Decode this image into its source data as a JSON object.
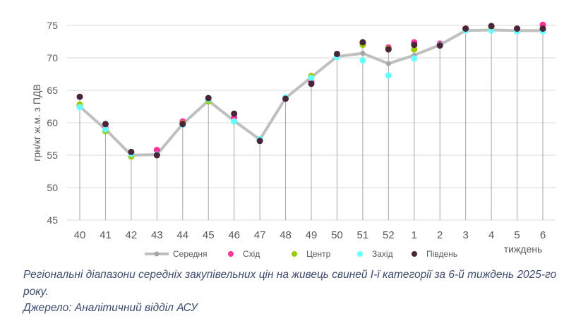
{
  "chart_data": {
    "type": "line",
    "ylabel": "грн/кг ж.м. з ПДВ",
    "xlabel": "тиждень",
    "ylim": [
      45,
      75
    ],
    "yticks": [
      45,
      50,
      55,
      60,
      65,
      70,
      75
    ],
    "grid": true,
    "legend_position": "bottom",
    "categories": [
      "40",
      "41",
      "42",
      "43",
      "44",
      "45",
      "46",
      "47",
      "48",
      "49",
      "50",
      "51",
      "52",
      "1",
      "2",
      "3",
      "4",
      "5",
      "6"
    ],
    "series": [
      {
        "name": "Середня",
        "color": "#bfbfbf",
        "marker": "#a6a6a6",
        "values": [
          62.5,
          59.0,
          55.0,
          55.1,
          59.8,
          63.4,
          60.3,
          57.4,
          63.8,
          67.0,
          70.2,
          70.7,
          69.1,
          70.4,
          72.0,
          74.2,
          74.3,
          74.2,
          74.2
        ]
      },
      {
        "name": "Схід",
        "color": "#ff3399",
        "values": [
          62.6,
          59.2,
          55.2,
          55.8,
          60.2,
          63.6,
          60.8,
          57.4,
          63.8,
          66.3,
          70.5,
          72.2,
          71.6,
          72.4,
          72.2,
          74.5,
          74.9,
          74.5,
          75.1
        ]
      },
      {
        "name": "Центр",
        "color": "#99cc00",
        "values": [
          62.8,
          58.7,
          54.8,
          55.0,
          59.9,
          63.3,
          60.2,
          57.3,
          63.9,
          67.2,
          70.2,
          72.0,
          71.4,
          71.3,
          72.0,
          74.4,
          74.5,
          74.3,
          74.3
        ]
      },
      {
        "name": "Захід",
        "color": "#66ffff",
        "values": [
          62.4,
          59.0,
          55.2,
          55.1,
          59.7,
          63.6,
          60.2,
          57.5,
          63.9,
          66.9,
          70.1,
          69.6,
          67.3,
          69.9,
          72.0,
          74.2,
          74.2,
          74.1,
          74.1
        ]
      },
      {
        "name": "Південь",
        "color": "#4a2438",
        "values": [
          64.0,
          59.8,
          55.5,
          55.0,
          59.8,
          63.8,
          61.4,
          57.2,
          63.7,
          66.0,
          70.6,
          72.4,
          71.3,
          72.0,
          71.9,
          74.5,
          74.9,
          74.5,
          74.5
        ]
      }
    ]
  },
  "caption": {
    "line1": "Регіональні діапазони середніх закупівельних цін на живець свиней I-ї категорії за 6-й тиждень 2025-го року.",
    "line2": "Джерело: Аналітичний відділ АСУ"
  }
}
